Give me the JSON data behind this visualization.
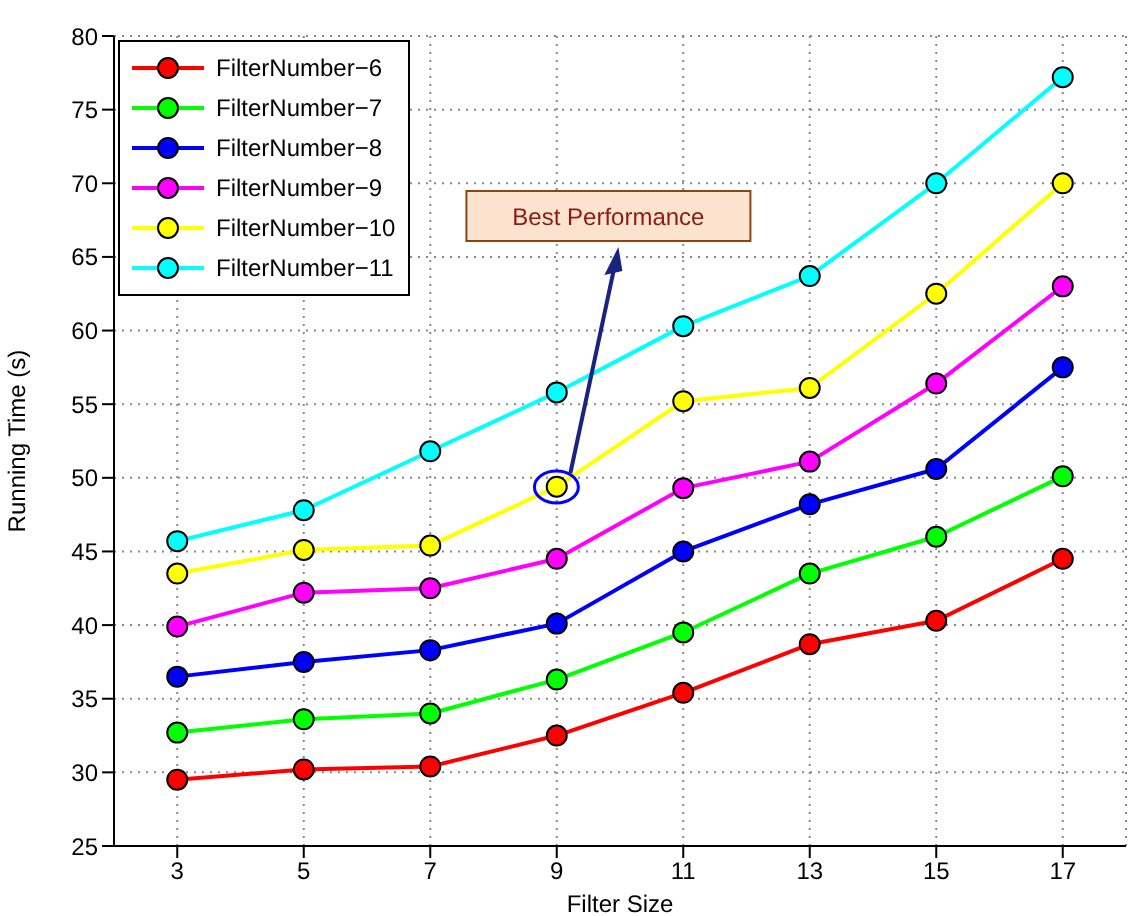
{
  "chart_data": {
    "type": "line",
    "xlabel": "Filter Size",
    "ylabel": "Running Time (s)",
    "x": [
      3,
      5,
      7,
      9,
      11,
      13,
      15,
      17
    ],
    "xlim": [
      2,
      18
    ],
    "xticks": [
      3,
      5,
      7,
      9,
      11,
      13,
      15,
      17
    ],
    "ylim": [
      25,
      80
    ],
    "yticks": [
      25,
      30,
      35,
      40,
      45,
      50,
      55,
      60,
      65,
      70,
      75,
      80
    ],
    "grid": true,
    "legend": "top left",
    "marker": "circle",
    "line_style": "solid",
    "annotations": [
      "Best Performance"
    ],
    "series": [
      {
        "name": "FilterNumber−6",
        "color": "#ff0000",
        "values": [
          29.5,
          30.2,
          30.4,
          32.5,
          35.4,
          38.7,
          40.3,
          44.5
        ]
      },
      {
        "name": "FilterNumber−7",
        "color": "#00ff00",
        "values": [
          32.7,
          33.6,
          34.0,
          36.3,
          39.5,
          43.5,
          46.0,
          50.1
        ]
      },
      {
        "name": "FilterNumber−8",
        "color": "#0000ff",
        "values": [
          36.5,
          37.5,
          38.3,
          40.1,
          45.0,
          48.2,
          50.6,
          57.5
        ]
      },
      {
        "name": "FilterNumber−9",
        "color": "#ff00ff",
        "values": [
          39.9,
          42.2,
          42.5,
          44.5,
          49.3,
          51.1,
          56.4,
          63.0
        ]
      },
      {
        "name": "FilterNumber−10",
        "color": "#ffff00",
        "values": [
          43.5,
          45.1,
          45.4,
          49.4,
          55.2,
          56.1,
          62.5,
          70.0
        ]
      },
      {
        "name": "FilterNumber−11",
        "color": "#00ffff",
        "values": [
          45.7,
          47.8,
          51.8,
          55.8,
          60.3,
          63.7,
          70.0,
          77.2
        ]
      }
    ]
  }
}
